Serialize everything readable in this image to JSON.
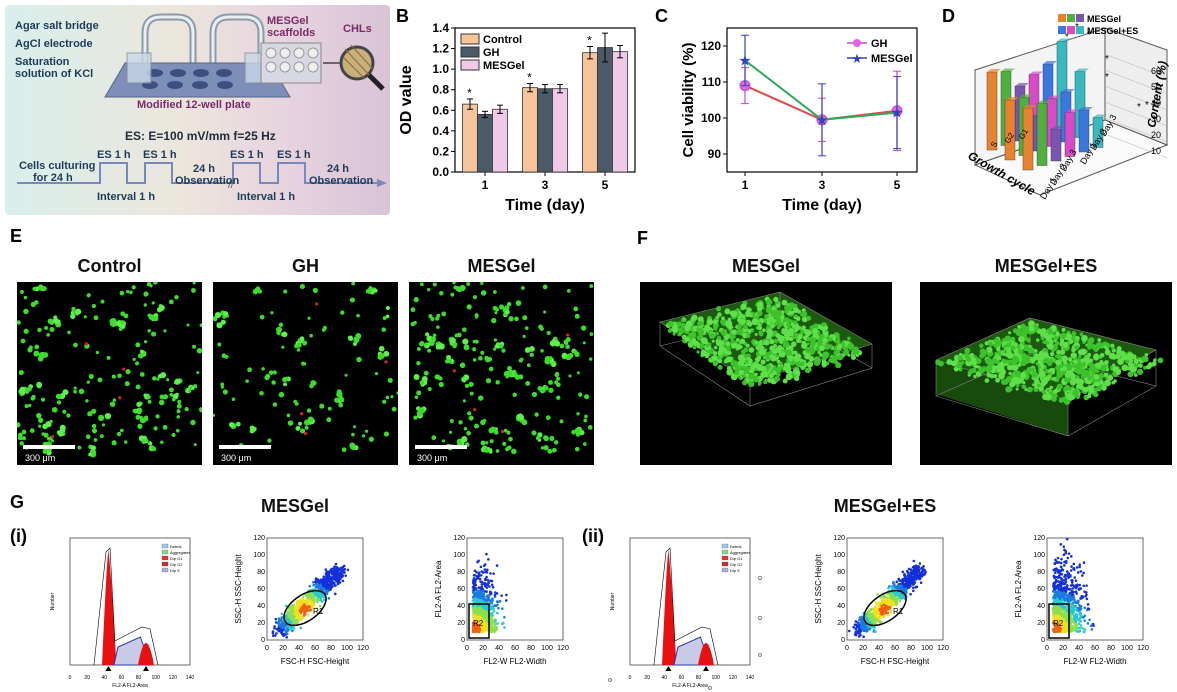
{
  "panels": {
    "A": "A",
    "B": "B",
    "C": "C",
    "D": "D",
    "E": "E",
    "F": "F",
    "G": "G",
    "Gi": "(i)",
    "Gii": "(ii)"
  },
  "panel_a": {
    "agar": "Agar salt bridge",
    "agcl": "AgCl electrode",
    "kcl1": "Saturation",
    "kcl2": "solution of KCl",
    "plate": "Modified 12-well plate",
    "scaf1": "MESGel",
    "scaf2": "scaffolds",
    "chls": "CHLs",
    "es": "ES: E=100 mV/mm  f=25 Hz",
    "culture1": "Cells culturing",
    "culture2": "for 24 h",
    "es1": "ES 1 h",
    "es2": "ES 1 h",
    "es3": "ES 1 h",
    "es4": "ES 1 h",
    "interval1": "Interval 1 h",
    "interval2": "Interval 1 h",
    "obs1a": "24 h",
    "obs1b": "Observation",
    "obs2a": "24 h",
    "obs2b": "Observation",
    "break": "//"
  },
  "chart_data": [
    {
      "type": "bar",
      "xlabel": "Time (day)",
      "ylabel": "OD value",
      "ylim": [
        0.0,
        1.4
      ],
      "yticks": [
        "0.0",
        "0.2",
        "0.4",
        "0.6",
        "0.8",
        "1.0",
        "1.2",
        "1.4"
      ],
      "categories": [
        "1",
        "3",
        "5"
      ],
      "series": [
        {
          "name": "Control",
          "values": [
            0.66,
            0.82,
            1.16
          ],
          "errors": [
            0.05,
            0.04,
            0.06
          ],
          "color": "#f5c49a"
        },
        {
          "name": "GH",
          "values": [
            0.56,
            0.81,
            1.21
          ],
          "errors": [
            0.03,
            0.04,
            0.14
          ],
          "color": "#4a5a68"
        },
        {
          "name": "MESGel",
          "values": [
            0.61,
            0.81,
            1.17
          ],
          "errors": [
            0.04,
            0.04,
            0.06
          ],
          "color": "#f0c8e8"
        }
      ],
      "annotations": [
        "*",
        "*",
        "*"
      ]
    },
    {
      "type": "line",
      "xlabel": "Time (day)",
      "ylabel": "Cell viability (%)",
      "ylim": [
        85,
        125
      ],
      "yticks": [
        "90",
        "100",
        "110",
        "120"
      ],
      "x": [
        "1",
        "3",
        "5"
      ],
      "series": [
        {
          "name": "GH",
          "values": [
            109,
            99.5,
            102
          ],
          "errors": [
            5,
            6,
            11
          ],
          "color": "#cc44cc"
        },
        {
          "name": "MESGel",
          "values": [
            116,
            99.5,
            101.5
          ],
          "errors": [
            7,
            10,
            10
          ],
          "color": "#3344bb"
        }
      ]
    },
    {
      "type": "bar",
      "xlabel": "Growth cycle",
      "zlabel": "Content (%)",
      "zticks": [
        "10",
        "20",
        "30",
        "40",
        "50",
        "60"
      ],
      "legend": [
        "MESGel",
        "MESGel+ES"
      ],
      "axis_labels": [
        "Day 1",
        "Day 2",
        "Day 3",
        "Day 1",
        "Day 2",
        "Day 3"
      ],
      "phases": [
        "S",
        "G2",
        "G1"
      ]
    }
  ],
  "panel_e": {
    "titles": [
      "Control",
      "GH",
      "MESGel"
    ],
    "scale": "300 μm"
  },
  "panel_f": {
    "titles": [
      "MESGel",
      "MESGel+ES"
    ]
  },
  "panel_g": {
    "titles": [
      "MESGel",
      "MESGel+ES"
    ],
    "hist_x": "FL2-A FL2-Area",
    "hist_y": "Number",
    "legend": [
      "Debris",
      "Aggregates",
      "Dip G1",
      "Dip G2",
      "Dip S"
    ],
    "ssc_y": "SSC-H SSC-Height",
    "fsc_x": "FSC-H FSC-Height",
    "fl2a_y": "FL2-A FL2-Area",
    "fl2w_x": "FL2-W FL2-Width",
    "r1": "R1",
    "r2": "R2",
    "ticks120": [
      "0",
      "20",
      "40",
      "60",
      "80",
      "100",
      "120"
    ],
    "ticks140": [
      "0",
      "20",
      "40",
      "60",
      "80",
      "100",
      "120",
      "140"
    ]
  }
}
